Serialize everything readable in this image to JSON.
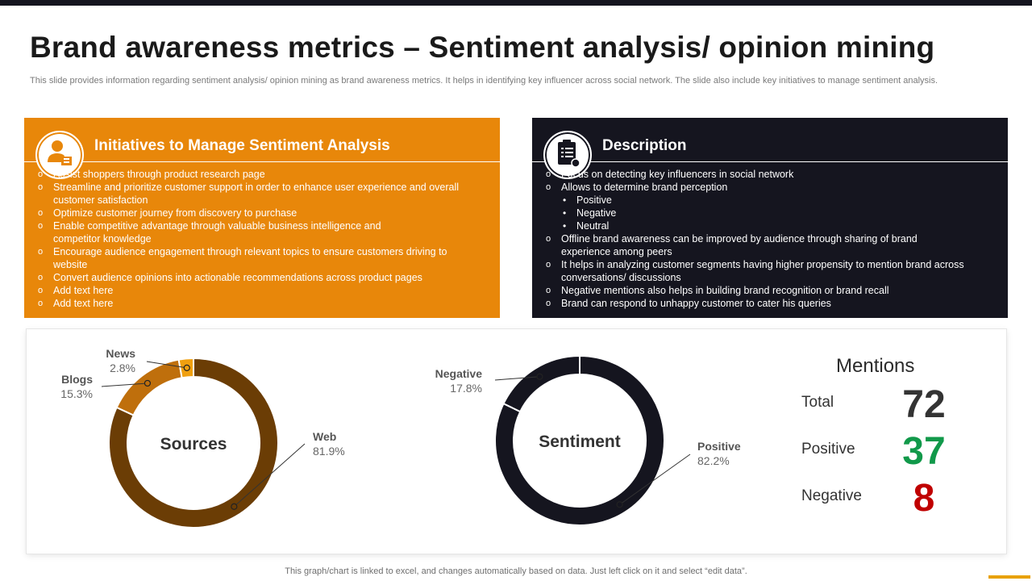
{
  "title": "Brand awareness metrics – Sentiment analysis/ opinion mining",
  "subtitle": "This slide provides information regarding sentiment analysis/ opinion mining as brand awareness metrics. It helps in identifying key influencer across social network. The slide also include key initiatives to manage sentiment analysis.",
  "colors": {
    "orange": "#e8870a",
    "dark": "#15151f",
    "web": "#6b3d05",
    "blogs": "#bf6f0c",
    "news": "#f0a010",
    "positive": "#11994a",
    "negative": "#c00000"
  },
  "initiatives": {
    "icon": "user-settings-icon",
    "heading": "Initiatives to Manage Sentiment Analysis",
    "items": [
      "Assist shoppers through product research page",
      "Streamline and prioritize customer support in order to enhance user experience and overall customer satisfaction",
      "Optimize customer journey from discovery to purchase",
      "Enable competitive advantage through valuable business intelligence and competitor knowledge",
      "Encourage audience engagement through relevant topics to ensure customers driving to website",
      "Convert audience opinions into actionable recommendations across product pages",
      "Add text here",
      "Add text here"
    ]
  },
  "description": {
    "icon": "clipboard-icon",
    "heading": "Description",
    "items": [
      "Focus on detecting key influencers in social network",
      "Allows to determine brand perception",
      "Positive",
      "Negative",
      "Neutral",
      "Offline brand awareness can be improved by audience through sharing of brand experience among peers",
      "It helps in analyzing customer segments having higher propensity to mention brand across conversations/ discussions",
      "Negative mentions also helps in building brand recognition or brand recall",
      "Brand can respond to unhappy customer to cater his queries"
    ]
  },
  "chart_data": [
    {
      "type": "pie",
      "title": "Sources",
      "categories": [
        "Web",
        "Blogs",
        "News"
      ],
      "value_labels": [
        "81.9%",
        "15.3%",
        "2.8%"
      ],
      "values": [
        81.9,
        15.3,
        2.8
      ],
      "colors": [
        "#6b3d05",
        "#bf6f0c",
        "#f0a010"
      ]
    },
    {
      "type": "pie",
      "title": "Sentiment",
      "categories": [
        "Positive",
        "Negative"
      ],
      "value_labels": [
        "82.2%",
        "17.8%"
      ],
      "values": [
        82.2,
        17.8
      ],
      "colors": [
        "#15151f",
        "#15151f"
      ]
    }
  ],
  "mentions": {
    "title": "Mentions",
    "total_label": "Total",
    "total_value": "72",
    "positive_label": "Positive",
    "positive_value": "37",
    "negative_label": "Negative",
    "negative_value": "8"
  },
  "footer": "This graph/chart is linked to excel, and changes automatically based on data. Just left click on it and select “edit data”."
}
